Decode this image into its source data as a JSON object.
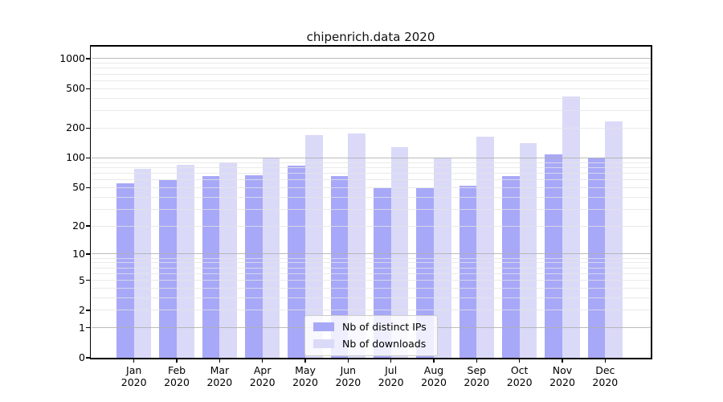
{
  "chart_data": {
    "type": "bar",
    "title": "chipenrich.data 2020",
    "categories": [
      "Jan",
      "Feb",
      "Mar",
      "Apr",
      "May",
      "Jun",
      "Jul",
      "Aug",
      "Sep",
      "Oct",
      "Nov",
      "Dec"
    ],
    "year_label": "2020",
    "series": [
      {
        "name": "Nb of distinct IPs",
        "color": "#a8a8f8",
        "values": [
          55,
          60,
          65,
          67,
          83,
          65,
          49,
          49,
          52,
          65,
          108,
          100
        ]
      },
      {
        "name": "Nb of downloads",
        "color": "#dadaf8",
        "values": [
          78,
          85,
          90,
          100,
          170,
          178,
          128,
          100,
          163,
          140,
          415,
          234
        ]
      }
    ],
    "yscale": "log1p",
    "ylim": [
      0,
      1300
    ],
    "ytick_values": [
      1000,
      500,
      200,
      100,
      50,
      20,
      10,
      5,
      2,
      1,
      0
    ],
    "ytick_labels": [
      "1000",
      "500",
      "200",
      "100",
      "50",
      "20",
      "10",
      "5",
      "2",
      "1",
      "0"
    ],
    "grid": {
      "major_values": [
        1,
        10,
        100,
        1000
      ],
      "minor_values": [
        2,
        3,
        4,
        5,
        6,
        7,
        8,
        9,
        20,
        30,
        40,
        50,
        60,
        70,
        80,
        90,
        200,
        300,
        400,
        500,
        600,
        700,
        800,
        900
      ],
      "drawn_above_bars": true
    },
    "legend": {
      "position": "bottom-center"
    },
    "axis_color": "#000000",
    "background_color": "#ffffff"
  }
}
